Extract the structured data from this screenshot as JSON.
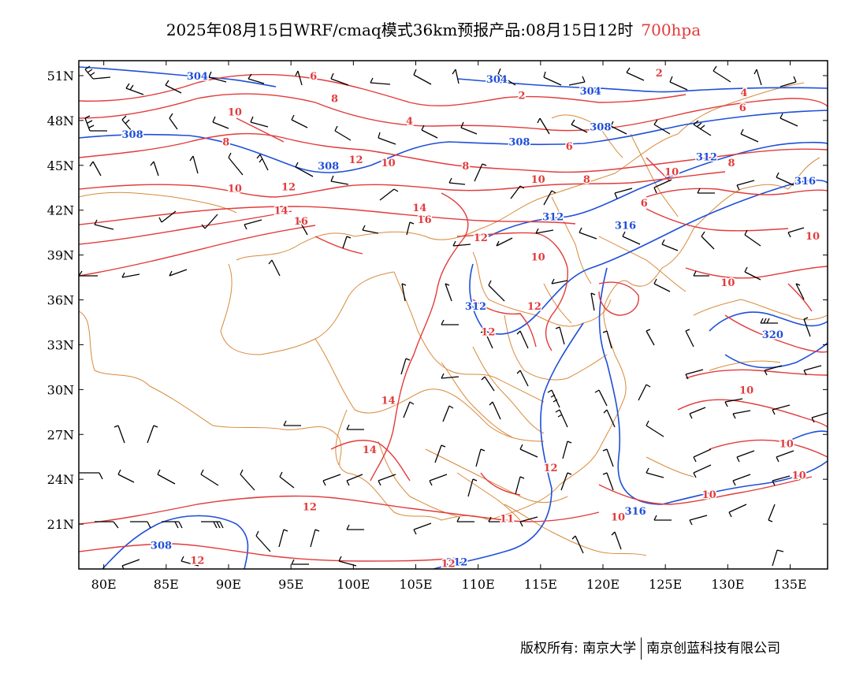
{
  "title": {
    "main": "2025年08月15日WRF/cmaq模式36km预报产品:08月15日12时",
    "level": "700hpa"
  },
  "colors": {
    "temperature": "#e23b3b",
    "geopotential": "#1f4fd8",
    "border": "#d9893a",
    "wind": "#000000",
    "level_title": "#e23b3b"
  },
  "map": {
    "lon_range": [
      78,
      138
    ],
    "lat_range": [
      18,
      52
    ],
    "lon_ticks": [
      80,
      85,
      90,
      95,
      100,
      105,
      110,
      115,
      120,
      125,
      130,
      135
    ],
    "lon_labels": [
      "80E",
      "85E",
      "90E",
      "95E",
      "100E",
      "105E",
      "110E",
      "115E",
      "120E",
      "125E",
      "130E",
      "135E"
    ],
    "lat_ticks": [
      21,
      24,
      27,
      30,
      33,
      36,
      39,
      42,
      45,
      48,
      51
    ],
    "lat_labels": [
      "21N",
      "24N",
      "27N",
      "30N",
      "33N",
      "36N",
      "39N",
      "42N",
      "45N",
      "48N",
      "51N"
    ],
    "geopotential_labels": [
      {
        "text": "304",
        "lon": 87.5,
        "lat": 51.0
      },
      {
        "text": "304",
        "lon": 111.5,
        "lat": 50.8
      },
      {
        "text": "304",
        "lon": 119.0,
        "lat": 50.0
      },
      {
        "text": "308",
        "lon": 82.3,
        "lat": 47.1
      },
      {
        "text": "308",
        "lon": 98.0,
        "lat": 45.0
      },
      {
        "text": "308",
        "lon": 113.3,
        "lat": 46.6
      },
      {
        "text": "308",
        "lon": 119.8,
        "lat": 47.6
      },
      {
        "text": "312",
        "lon": 116.0,
        "lat": 41.6
      },
      {
        "text": "312",
        "lon": 128.3,
        "lat": 45.6
      },
      {
        "text": "312",
        "lon": 109.8,
        "lat": 35.6
      },
      {
        "text": "312",
        "lon": 108.3,
        "lat": 18.5
      },
      {
        "text": "316",
        "lon": 121.8,
        "lat": 41.0
      },
      {
        "text": "316",
        "lon": 136.2,
        "lat": 44.0
      },
      {
        "text": "316",
        "lon": 122.6,
        "lat": 21.9
      },
      {
        "text": "320",
        "lon": 133.6,
        "lat": 33.7
      },
      {
        "text": "308",
        "lon": 84.6,
        "lat": 19.6
      }
    ],
    "temperature_labels": [
      {
        "text": "6",
        "lon": 96.8,
        "lat": 51.0
      },
      {
        "text": "8",
        "lon": 98.5,
        "lat": 49.5
      },
      {
        "text": "10",
        "lon": 90.5,
        "lat": 48.6
      },
      {
        "text": "8",
        "lon": 89.8,
        "lat": 46.6
      },
      {
        "text": "10",
        "lon": 90.5,
        "lat": 43.5
      },
      {
        "text": "12",
        "lon": 94.8,
        "lat": 43.6
      },
      {
        "text": "14",
        "lon": 94.2,
        "lat": 42.0
      },
      {
        "text": "16",
        "lon": 95.8,
        "lat": 41.3
      },
      {
        "text": "12",
        "lon": 100.2,
        "lat": 45.4
      },
      {
        "text": "10",
        "lon": 102.8,
        "lat": 45.2
      },
      {
        "text": "4",
        "lon": 104.5,
        "lat": 48.0
      },
      {
        "text": "2",
        "lon": 113.5,
        "lat": 49.7
      },
      {
        "text": "2",
        "lon": 124.5,
        "lat": 51.2
      },
      {
        "text": "4",
        "lon": 131.3,
        "lat": 49.9
      },
      {
        "text": "6",
        "lon": 131.2,
        "lat": 48.9
      },
      {
        "text": "6",
        "lon": 117.3,
        "lat": 46.3
      },
      {
        "text": "8",
        "lon": 109.0,
        "lat": 45.0
      },
      {
        "text": "10",
        "lon": 114.8,
        "lat": 44.1
      },
      {
        "text": "8",
        "lon": 118.7,
        "lat": 44.1
      },
      {
        "text": "10",
        "lon": 125.5,
        "lat": 44.6
      },
      {
        "text": "8",
        "lon": 130.3,
        "lat": 45.2
      },
      {
        "text": "6",
        "lon": 123.3,
        "lat": 42.5
      },
      {
        "text": "14",
        "lon": 105.3,
        "lat": 42.2
      },
      {
        "text": "16",
        "lon": 105.7,
        "lat": 41.4
      },
      {
        "text": "12",
        "lon": 110.2,
        "lat": 40.2
      },
      {
        "text": "10",
        "lon": 114.8,
        "lat": 38.9
      },
      {
        "text": "10",
        "lon": 130.0,
        "lat": 37.2
      },
      {
        "text": "10",
        "lon": 136.8,
        "lat": 40.3
      },
      {
        "text": "12",
        "lon": 114.5,
        "lat": 35.6
      },
      {
        "text": "12",
        "lon": 110.8,
        "lat": 33.9
      },
      {
        "text": "14",
        "lon": 102.8,
        "lat": 29.3
      },
      {
        "text": "14",
        "lon": 101.3,
        "lat": 26.0
      },
      {
        "text": "10",
        "lon": 131.5,
        "lat": 30.0
      },
      {
        "text": "10",
        "lon": 134.7,
        "lat": 26.4
      },
      {
        "text": "10",
        "lon": 135.7,
        "lat": 24.3
      },
      {
        "text": "10",
        "lon": 128.5,
        "lat": 23.0
      },
      {
        "text": "12",
        "lon": 115.8,
        "lat": 24.8
      },
      {
        "text": "12",
        "lon": 96.5,
        "lat": 22.2
      },
      {
        "text": "10",
        "lon": 121.2,
        "lat": 21.5
      },
      {
        "text": "12",
        "lon": 107.6,
        "lat": 18.4
      },
      {
        "text": "12",
        "lon": 87.5,
        "lat": 18.6
      },
      {
        "text": "11",
        "lon": 112.3,
        "lat": 21.4
      }
    ]
  },
  "footer": {
    "left": "版权所有: 南京大学",
    "right": "南京创蓝科技有限公司"
  }
}
